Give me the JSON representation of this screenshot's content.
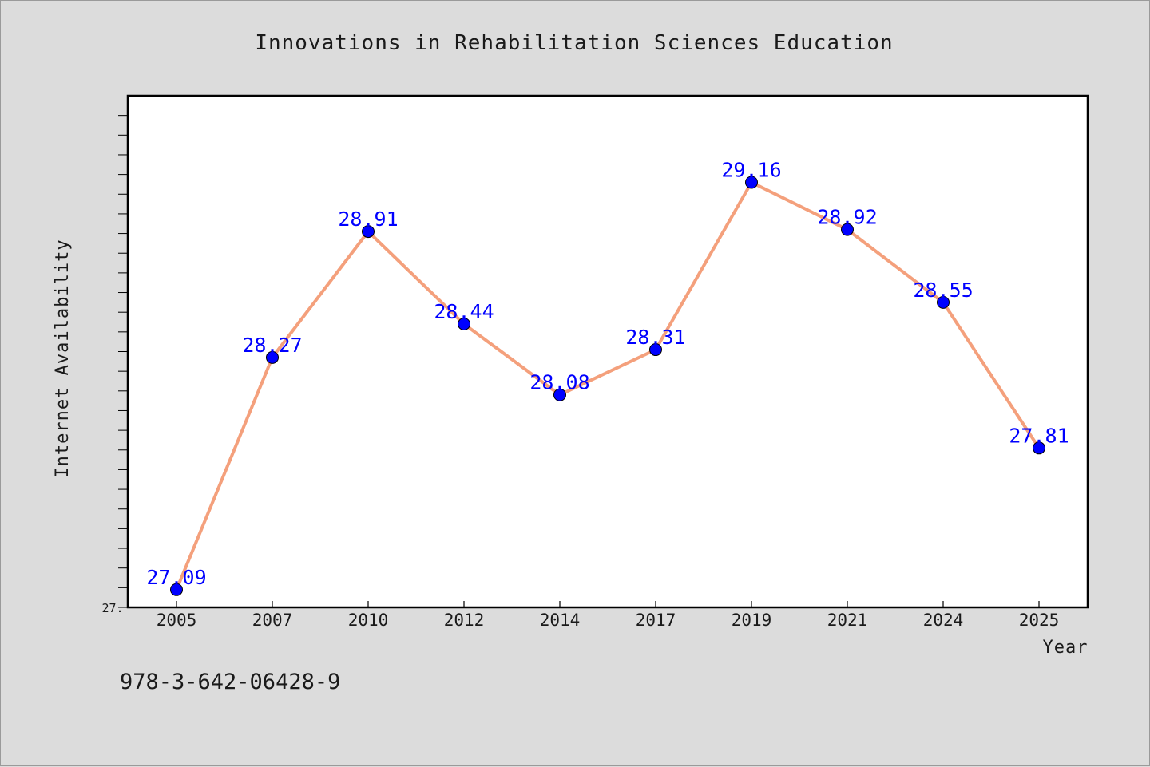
{
  "chart_data": {
    "type": "line",
    "title": "Innovations in Rehabilitation Sciences Education",
    "xlabel": "Year",
    "ylabel": "Internet Availability",
    "categories": [
      "2005",
      "2007",
      "2010",
      "2012",
      "2014",
      "2017",
      "2019",
      "2021",
      "2024",
      "2025"
    ],
    "series": [
      {
        "values": [
          27.09,
          28.27,
          28.91,
          28.44,
          28.08,
          28.31,
          29.16,
          28.92,
          28.55,
          27.81
        ],
        "data_labels": [
          "27.09",
          "28.27",
          "28.91",
          "28.44",
          "28.08",
          "28.31",
          "29.16",
          "28.92",
          "28.55",
          "27.81"
        ],
        "line_color": "#f4a07c",
        "marker_color": "#0000ff"
      }
    ],
    "ylim": [
      27.0,
      29.6
    ],
    "y_tick_labels": [
      "27."
    ],
    "label_color": "#0000ff",
    "grid": false,
    "legend": "none"
  },
  "footer": {
    "code": "978-3-642-06428-9"
  }
}
